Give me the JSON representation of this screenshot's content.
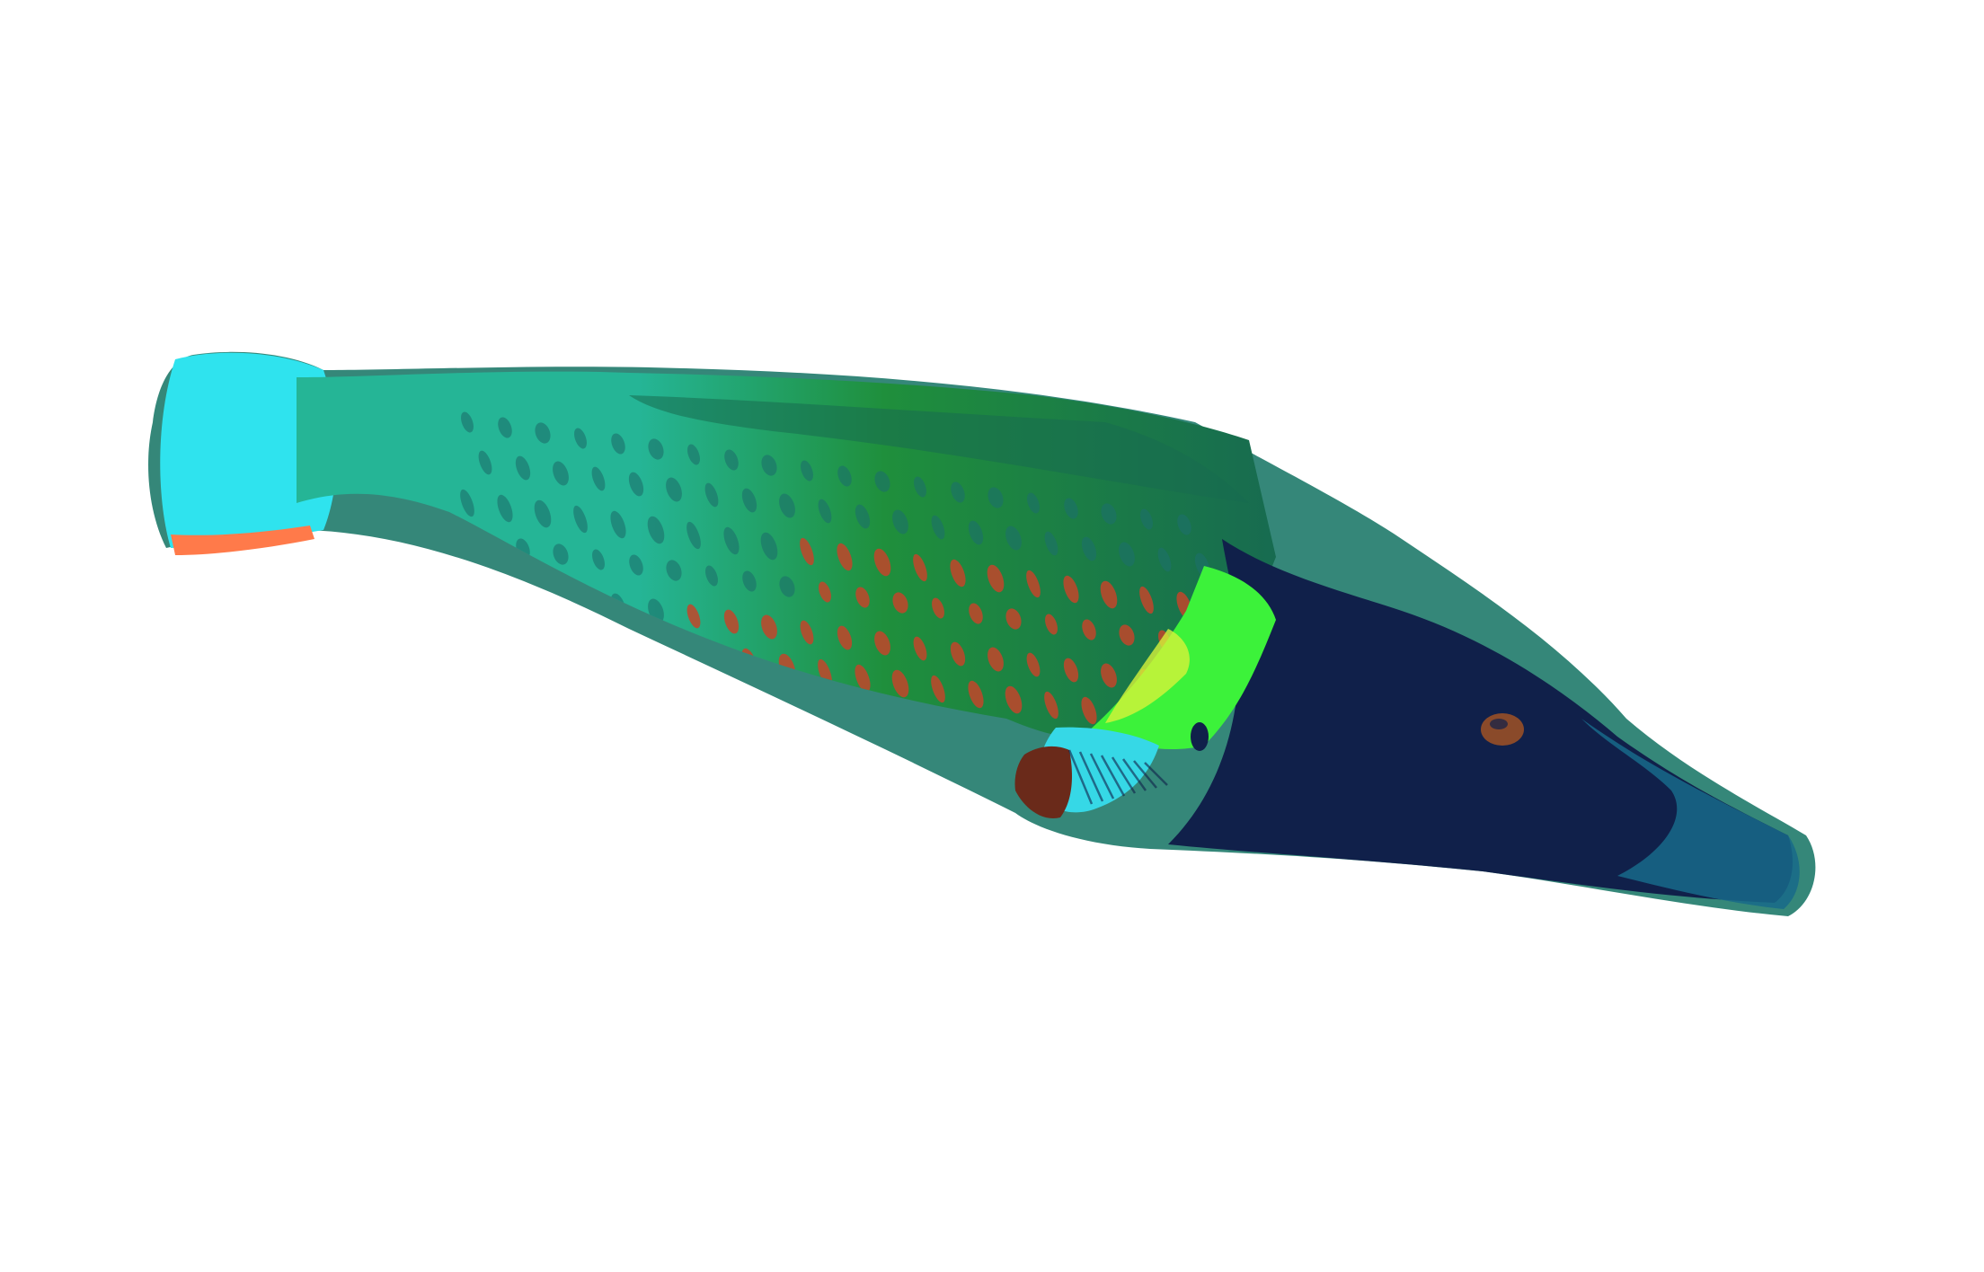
{
  "image": {
    "subject_icon": "fish-illustration",
    "background_color": "#ffffff",
    "palette": {
      "tail_cyan": "#2fe3ee",
      "tail_edge_orange": "#ff7a4a",
      "body_teal": "#25b596",
      "body_green": "#1f8f3c",
      "dark_green": "#176b50",
      "spot_red": "#c2452a",
      "spot_dark": "#1d6f6a",
      "highlight_lime": "#3cf23a",
      "highlight_yellow": "#d6f23a",
      "head_navy": "#10204a",
      "snout_blue": "#176a8a",
      "fin_cyan": "#36d8e6",
      "fin_maroon": "#6a2a1a",
      "eye_brown": "#8a4a2a",
      "outline_teal": "#1f7a6a"
    }
  }
}
